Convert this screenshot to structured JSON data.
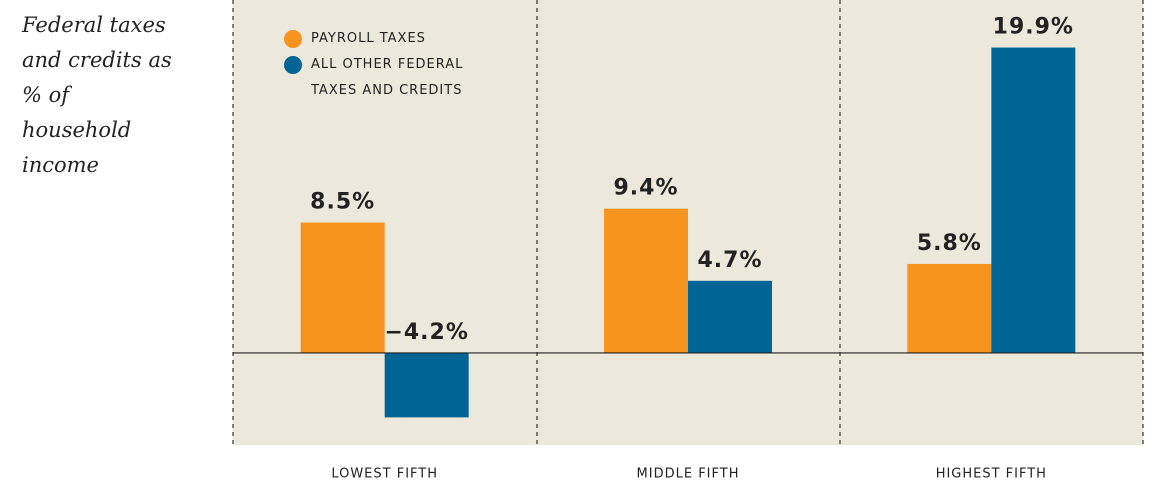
{
  "chart_data": {
    "type": "bar",
    "title": "Federal taxes and credits as % of household income",
    "categories": [
      "LOWEST FIFTH",
      "MIDDLE FIFTH",
      "HIGHEST FIFTH"
    ],
    "series": [
      {
        "name": "PAYROLL TAXES",
        "color": "#f7941d",
        "values": [
          8.5,
          9.4,
          5.8
        ],
        "value_labels": [
          "8.5%",
          "9.4%",
          "5.8%"
        ]
      },
      {
        "name": "ALL OTHER FEDERAL TAXES AND CREDITS",
        "color": "#006494",
        "values": [
          -4.2,
          4.7,
          19.9
        ],
        "value_labels": [
          "−4.2%",
          "4.7%",
          "19.9%"
        ]
      }
    ],
    "ylim": [
      -6,
      23
    ]
  }
}
